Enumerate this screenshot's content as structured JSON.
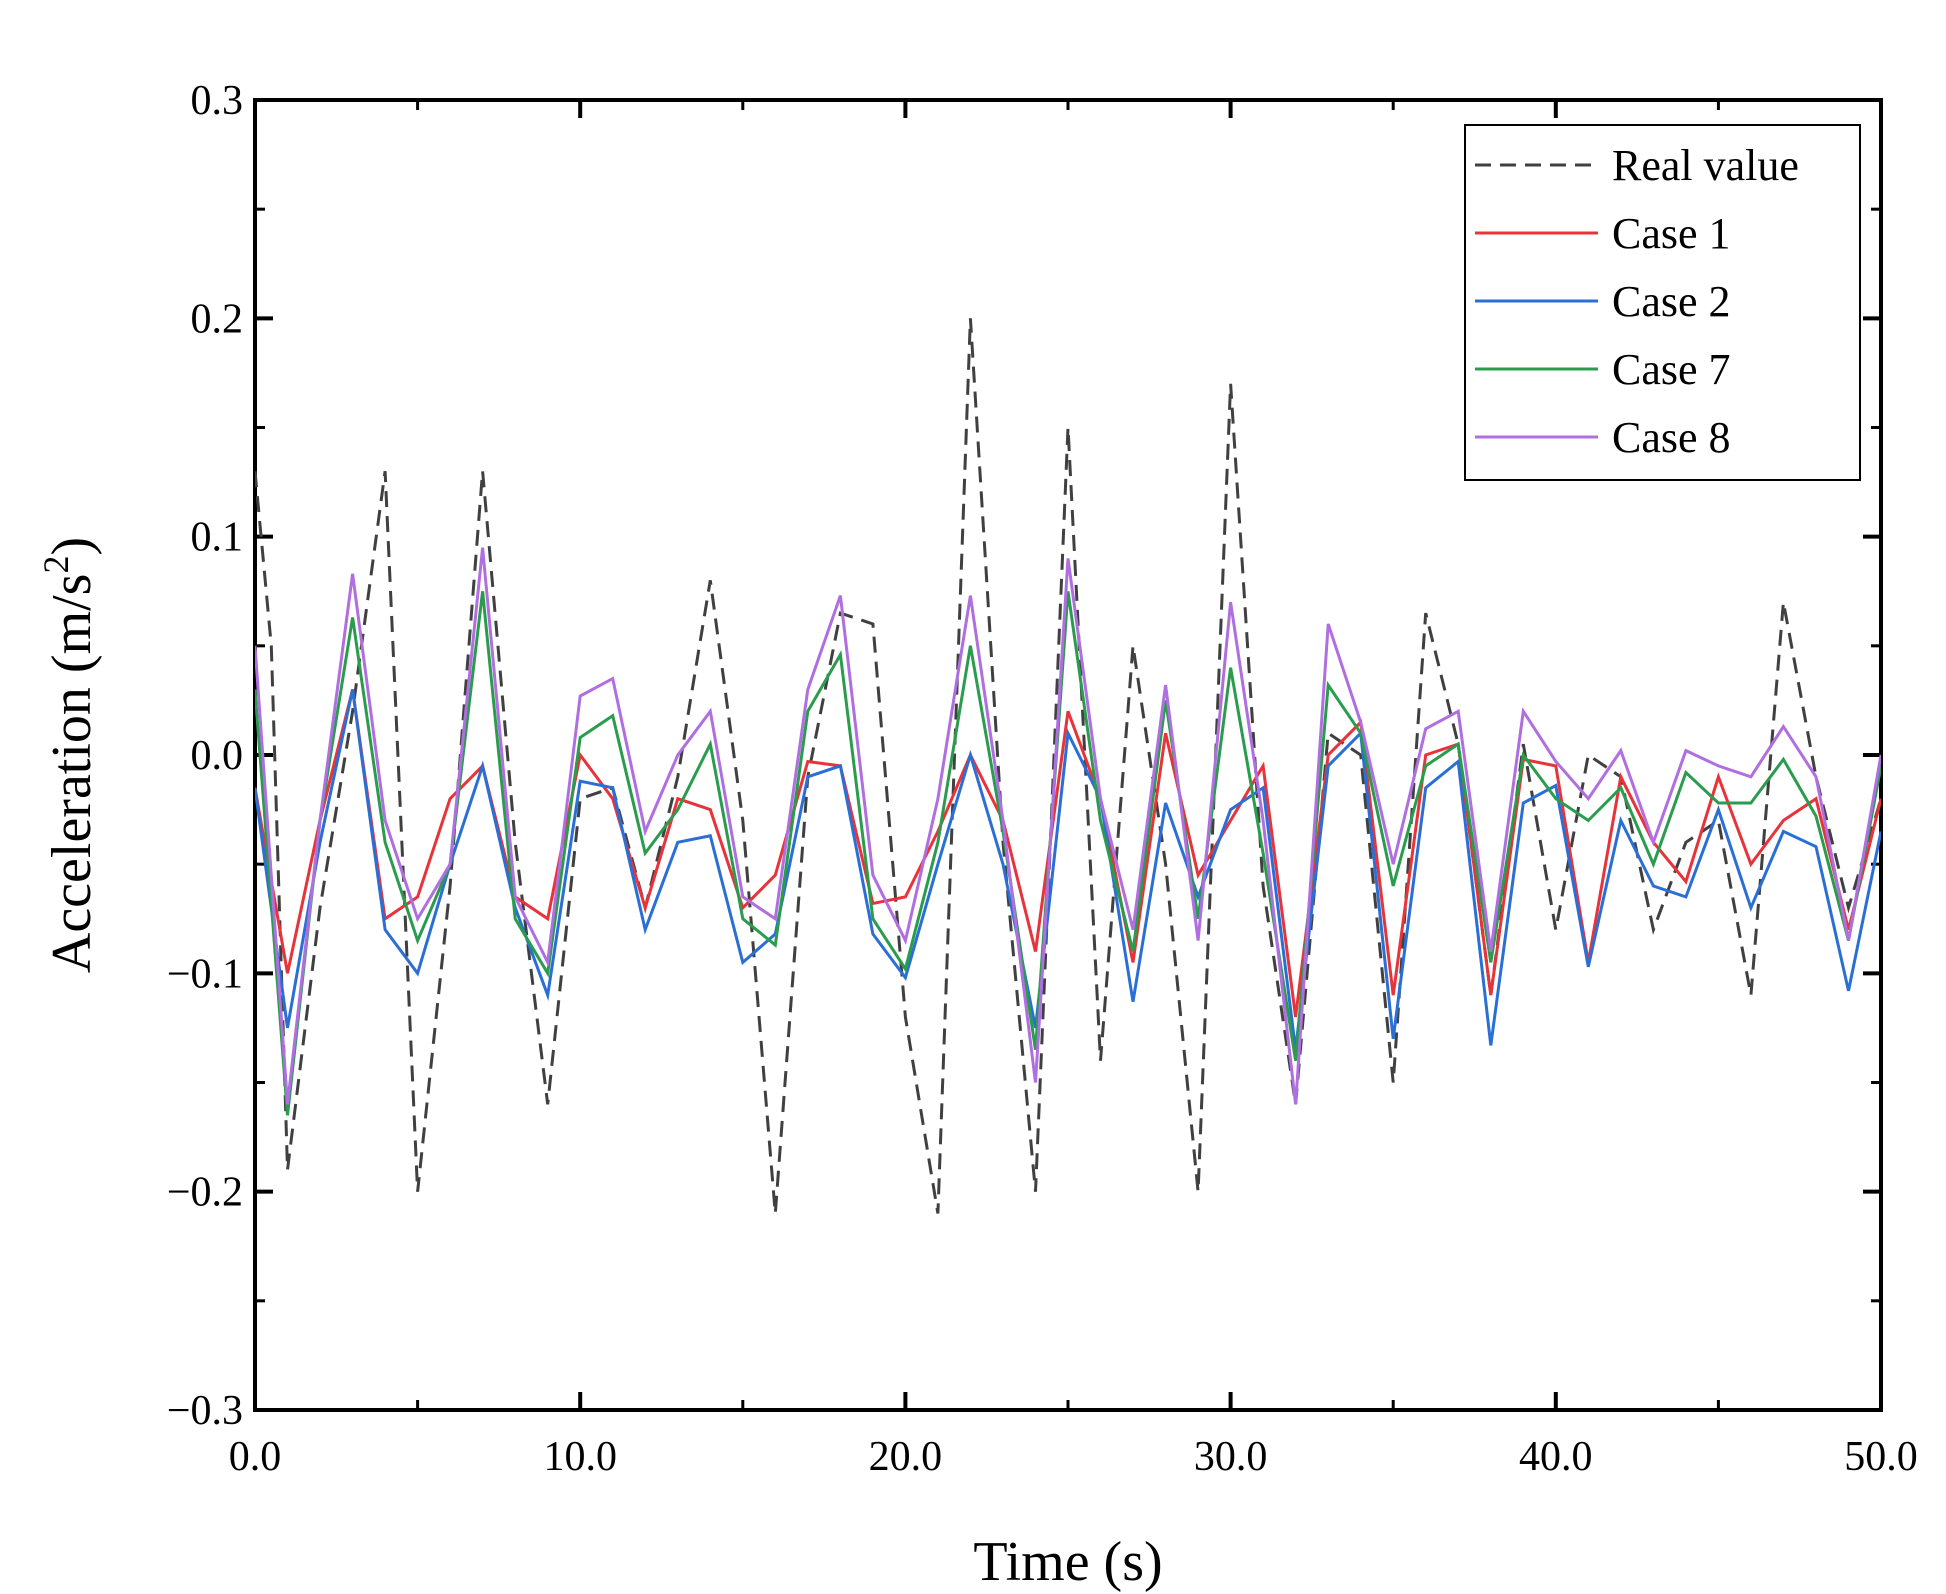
{
  "chart_data": {
    "type": "line",
    "title": "",
    "xlabel": "Time (s)",
    "ylabel_main": "Acceleration (m/s",
    "ylabel_sup": "2",
    "ylabel_close": ")",
    "xlim": [
      0,
      50
    ],
    "ylim": [
      -0.3,
      0.3
    ],
    "xticks": [
      0,
      10,
      20,
      30,
      40,
      50
    ],
    "xtick_labels": [
      "0.0",
      "10.0",
      "20.0",
      "30.0",
      "40.0",
      "50.0"
    ],
    "yticks": [
      -0.3,
      -0.2,
      -0.1,
      0.0,
      0.1,
      0.2,
      0.3
    ],
    "ytick_labels": [
      "−0.3",
      "−0.2",
      "−0.1",
      "0.0",
      "0.1",
      "0.2",
      "0.3"
    ],
    "grid": false,
    "legend_position": "top-right",
    "series": [
      {
        "name": "Real value",
        "color": "#404040",
        "dash": "dashed",
        "x": [
          0,
          0.5,
          1,
          2,
          3,
          4,
          5,
          6,
          7,
          8,
          9,
          10,
          11,
          12,
          13,
          14,
          15,
          16,
          17,
          18,
          19,
          20,
          21,
          22,
          23,
          24,
          25,
          26,
          27,
          28,
          29,
          30,
          31,
          32,
          33,
          34,
          35,
          36,
          37,
          38,
          39,
          40,
          41,
          42,
          43,
          44,
          45,
          46,
          47,
          48,
          49,
          50
        ],
        "values": [
          0.13,
          0.05,
          -0.19,
          -0.07,
          0.02,
          0.13,
          -0.2,
          -0.06,
          0.13,
          -0.04,
          -0.16,
          -0.02,
          -0.015,
          -0.07,
          -0.01,
          0.08,
          -0.03,
          -0.21,
          -0.01,
          0.065,
          0.06,
          -0.12,
          -0.21,
          0.2,
          -0.04,
          -0.2,
          0.15,
          -0.14,
          0.05,
          -0.05,
          -0.2,
          0.17,
          -0.06,
          -0.16,
          0.01,
          0.0,
          -0.15,
          0.065,
          0.005,
          -0.11,
          0.005,
          -0.08,
          0.0,
          -0.01,
          -0.08,
          -0.04,
          -0.03,
          -0.11,
          0.07,
          -0.01,
          -0.07,
          -0.02
        ]
      },
      {
        "name": "Case 1",
        "color": "#e8333a",
        "dash": "solid",
        "x": [
          0,
          1,
          2,
          3,
          4,
          5,
          6,
          7,
          8,
          9,
          10,
          11,
          12,
          13,
          14,
          15,
          16,
          17,
          18,
          19,
          20,
          21,
          22,
          23,
          24,
          25,
          26,
          27,
          28,
          29,
          30,
          31,
          32,
          33,
          34,
          35,
          36,
          37,
          38,
          39,
          40,
          41,
          42,
          43,
          44,
          45,
          46,
          47,
          48,
          49,
          50
        ],
        "values": [
          -0.015,
          -0.1,
          -0.03,
          0.03,
          -0.075,
          -0.065,
          -0.02,
          -0.005,
          -0.065,
          -0.075,
          0.0,
          -0.02,
          -0.07,
          -0.02,
          -0.025,
          -0.07,
          -0.055,
          -0.003,
          -0.005,
          -0.068,
          -0.065,
          -0.035,
          0.0,
          -0.03,
          -0.09,
          0.02,
          -0.02,
          -0.095,
          0.01,
          -0.055,
          -0.03,
          -0.005,
          -0.12,
          0.0,
          0.015,
          -0.11,
          0.0,
          0.005,
          -0.11,
          -0.002,
          -0.005,
          -0.095,
          -0.01,
          -0.04,
          -0.058,
          -0.01,
          -0.05,
          -0.03,
          -0.02,
          -0.08,
          -0.02
        ]
      },
      {
        "name": "Case 2",
        "color": "#2a6fd6",
        "dash": "solid",
        "x": [
          0,
          1,
          2,
          3,
          4,
          5,
          6,
          7,
          8,
          9,
          10,
          11,
          12,
          13,
          14,
          15,
          16,
          17,
          18,
          19,
          20,
          21,
          22,
          23,
          24,
          25,
          26,
          27,
          28,
          29,
          30,
          31,
          32,
          33,
          34,
          35,
          36,
          37,
          38,
          39,
          40,
          41,
          42,
          43,
          44,
          45,
          46,
          47,
          48,
          49,
          50
        ],
        "values": [
          -0.015,
          -0.125,
          -0.04,
          0.03,
          -0.08,
          -0.1,
          -0.05,
          -0.005,
          -0.07,
          -0.11,
          -0.012,
          -0.015,
          -0.08,
          -0.04,
          -0.037,
          -0.095,
          -0.082,
          -0.01,
          -0.005,
          -0.082,
          -0.102,
          -0.05,
          0.0,
          -0.05,
          -0.125,
          0.01,
          -0.02,
          -0.113,
          -0.022,
          -0.065,
          -0.025,
          -0.015,
          -0.135,
          -0.005,
          0.01,
          -0.13,
          -0.015,
          -0.003,
          -0.133,
          -0.022,
          -0.014,
          -0.097,
          -0.03,
          -0.06,
          -0.065,
          -0.025,
          -0.07,
          -0.035,
          -0.042,
          -0.108,
          -0.035
        ]
      },
      {
        "name": "Case 7",
        "color": "#2a9c4e",
        "dash": "solid",
        "x": [
          0,
          1,
          2,
          3,
          4,
          5,
          6,
          7,
          8,
          9,
          10,
          11,
          12,
          13,
          14,
          15,
          16,
          17,
          18,
          19,
          20,
          21,
          22,
          23,
          24,
          25,
          26,
          27,
          28,
          29,
          30,
          31,
          32,
          33,
          34,
          35,
          36,
          37,
          38,
          39,
          40,
          41,
          42,
          43,
          44,
          45,
          46,
          47,
          48,
          49,
          50
        ],
        "values": [
          0.03,
          -0.165,
          -0.03,
          0.063,
          -0.04,
          -0.085,
          -0.05,
          0.075,
          -0.075,
          -0.1,
          0.008,
          0.018,
          -0.045,
          -0.025,
          0.005,
          -0.075,
          -0.087,
          0.02,
          0.046,
          -0.075,
          -0.098,
          -0.04,
          0.05,
          -0.035,
          -0.135,
          0.075,
          -0.03,
          -0.09,
          0.025,
          -0.075,
          0.04,
          -0.045,
          -0.14,
          0.032,
          0.01,
          -0.06,
          -0.005,
          0.005,
          -0.095,
          0.0,
          -0.02,
          -0.03,
          -0.015,
          -0.05,
          -0.008,
          -0.022,
          -0.022,
          -0.002,
          -0.028,
          -0.085,
          -0.005
        ]
      },
      {
        "name": "Case 8",
        "color": "#b06fe0",
        "dash": "solid",
        "x": [
          0,
          1,
          2,
          3,
          4,
          5,
          6,
          7,
          8,
          9,
          10,
          11,
          12,
          13,
          14,
          15,
          16,
          17,
          18,
          19,
          20,
          21,
          22,
          23,
          24,
          25,
          26,
          27,
          28,
          29,
          30,
          31,
          32,
          33,
          34,
          35,
          36,
          37,
          38,
          39,
          40,
          41,
          42,
          43,
          44,
          45,
          46,
          47,
          48,
          49,
          50
        ],
        "values": [
          0.05,
          -0.16,
          -0.03,
          0.083,
          -0.03,
          -0.075,
          -0.05,
          0.095,
          -0.065,
          -0.095,
          0.027,
          0.035,
          -0.035,
          0.0,
          0.02,
          -0.065,
          -0.075,
          0.03,
          0.073,
          -0.055,
          -0.085,
          -0.02,
          0.073,
          -0.03,
          -0.15,
          0.09,
          -0.02,
          -0.08,
          0.032,
          -0.085,
          0.07,
          -0.03,
          -0.16,
          0.06,
          0.015,
          -0.05,
          0.012,
          0.02,
          -0.09,
          0.02,
          -0.003,
          -0.02,
          0.002,
          -0.04,
          0.002,
          -0.005,
          -0.01,
          0.013,
          -0.01,
          -0.085,
          0.0
        ]
      }
    ]
  }
}
